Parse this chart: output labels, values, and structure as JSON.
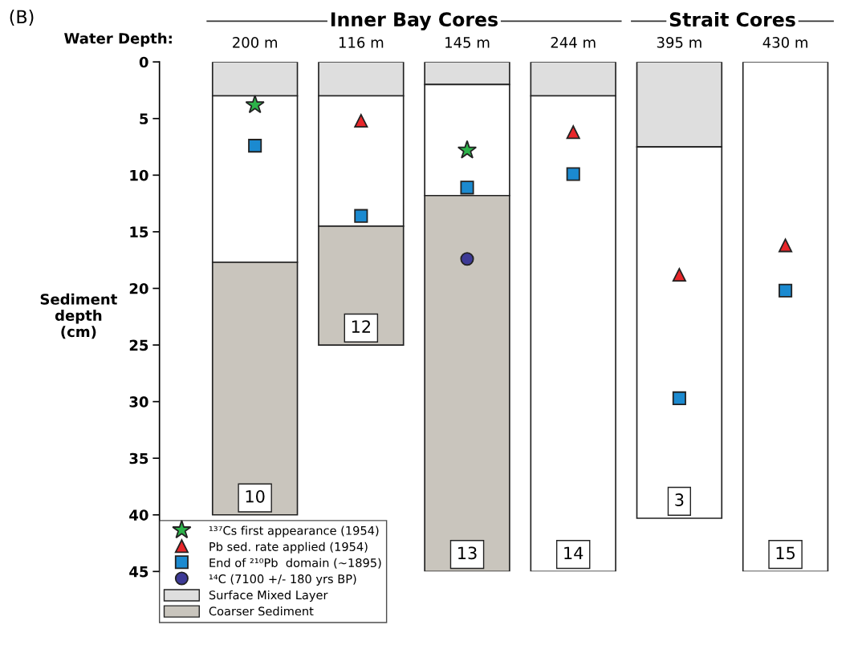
{
  "chart_data": {
    "type": "bar",
    "stacked": true,
    "ylabel": "Sediment\ndepth\n(cm)",
    "categories": [
      "10",
      "12",
      "13",
      "14",
      "3",
      "15"
    ],
    "ylim": [
      45,
      0
    ],
    "yticks": [
      0,
      5,
      10,
      15,
      20,
      25,
      30,
      35,
      40,
      45
    ],
    "tick_labels": "y",
    "grid": false,
    "legend": "bottom left",
    "series": [
      {
        "name": "Surface Mixed Layer",
        "color": "#dedede",
        "values": [
          3,
          3,
          2,
          3,
          7.5,
          null
        ]
      },
      {
        "color": "#ffffff",
        "values": [
          14.7,
          11.5,
          9.8,
          42,
          32.8,
          45
        ]
      },
      {
        "name": "Coarser Sediment",
        "color": "#c9c5bd",
        "values": [
          22.3,
          10.5,
          33.2,
          null,
          null,
          null
        ]
      },
      {
        "type": "scatter",
        "marker": "star",
        "name": "¹³⁷Cs first appearance (1954)",
        "color": "#2db34a",
        "x": [
          "10",
          "12",
          "13",
          "14",
          "3",
          "15"
        ],
        "values": [
          3.8,
          null,
          7.8,
          null,
          null,
          null
        ]
      },
      {
        "type": "scatter",
        "marker": "triangle",
        "name": "Pb sed. rate applied (1954)",
        "color": "#e8262a",
        "x": [
          "10",
          "12",
          "13",
          "14",
          "3",
          "15"
        ],
        "values": [
          null,
          5.2,
          null,
          6.2,
          18.8,
          16.2
        ]
      },
      {
        "type": "scatter",
        "marker": "square",
        "name": "End of ²¹⁰Pb  domain (~1895)",
        "color": "#1b8ad0",
        "x": [
          "10",
          "12",
          "13",
          "14",
          "3",
          "15"
        ],
        "values": [
          7.4,
          13.6,
          11.1,
          9.9,
          29.7,
          20.2
        ]
      },
      {
        "type": "scatter",
        "marker": "circle",
        "name": "¹⁴C (7100 +/- 180 yrs BP)",
        "color": "#3d3a96",
        "x": [
          "10",
          "12",
          "13",
          "14",
          "3",
          "15"
        ],
        "values": [
          null,
          null,
          17.4,
          null,
          null,
          null
        ]
      }
    ],
    "annotations": [
      "(B)",
      "Water Depth:",
      "200 m",
      "116 m",
      "145 m",
      "244 m",
      "395 m",
      "430 m",
      "Inner Bay Cores",
      "Strait Cores"
    ]
  }
}
